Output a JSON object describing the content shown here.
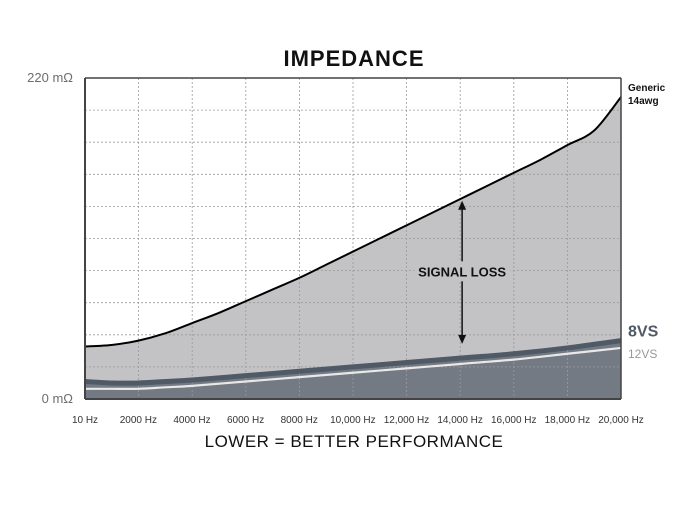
{
  "chart_data": {
    "type": "area",
    "title": "IMPEDANCE",
    "xlabel": "LOWER = BETTER PERFORMANCE",
    "ylabel": "",
    "xlim": [
      10,
      20000
    ],
    "ylim": [
      0,
      220
    ],
    "y_tick_labels": [
      "220 mΩ",
      "0 mΩ"
    ],
    "x_tick_labels": [
      "10 Hz",
      "2000 Hz",
      "4000 Hz",
      "6000 Hz",
      "8000 Hz",
      "10,000 Hz",
      "12,000 Hz",
      "14,000 Hz",
      "16,000 Hz",
      "18,000 Hz",
      "20,000 Hz"
    ],
    "x_tick_values": [
      10,
      2000,
      4000,
      6000,
      8000,
      10000,
      12000,
      14000,
      16000,
      18000,
      20000
    ],
    "grid": true,
    "series": [
      {
        "name": "Generic\n14awg",
        "label_lines": [
          "Generic",
          "14awg"
        ],
        "color": "#000000",
        "fill": "#c3c3c5",
        "x": [
          10,
          1000,
          2000,
          3000,
          4000,
          5000,
          6000,
          7000,
          8000,
          9000,
          10000,
          11000,
          12000,
          13000,
          14000,
          15000,
          16000,
          17000,
          18000,
          19000,
          20000
        ],
        "y": [
          36,
          37,
          40,
          45,
          52,
          59,
          67,
          75,
          83,
          92,
          101,
          110,
          119,
          128,
          137,
          146,
          155,
          164,
          174,
          184,
          207
        ]
      },
      {
        "name": "8VS",
        "color": "#4f5a66",
        "fill": "#737a83",
        "x": [
          10,
          1000,
          2000,
          3000,
          4000,
          6000,
          8000,
          10000,
          12000,
          14000,
          16000,
          18000,
          20000
        ],
        "y": [
          12,
          11,
          11,
          12,
          13,
          16,
          19,
          22,
          25,
          28,
          31,
          35,
          40
        ]
      },
      {
        "name": "12VS",
        "color": "#e8e8e8",
        "x": [
          10,
          1000,
          2000,
          3000,
          4000,
          6000,
          8000,
          10000,
          12000,
          14000,
          16000,
          18000,
          20000
        ],
        "y": [
          7,
          7,
          7,
          8,
          9,
          12,
          15,
          18,
          21,
          24,
          27,
          31,
          35
        ]
      }
    ],
    "annotations": [
      {
        "text": "SIGNAL LOSS",
        "x": 14000,
        "y_from": 35,
        "y_to": 140,
        "arrow": "double-vertical"
      }
    ],
    "colors": {
      "axis": "#444444",
      "grid": "#9a9a9a",
      "background": "#ffffff"
    }
  }
}
